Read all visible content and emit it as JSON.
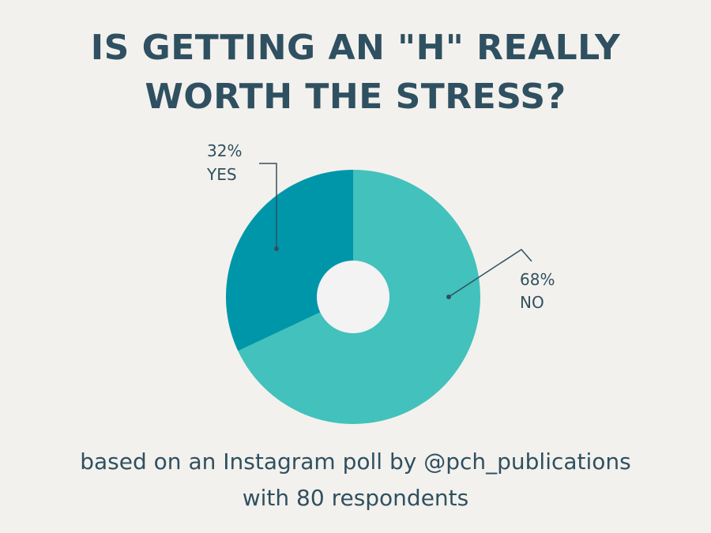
{
  "title": {
    "line1": "IS GETTING AN \"H\" REALLY",
    "line2": "WORTH THE STRESS?"
  },
  "caption": {
    "line1": "based on an Instagram poll by @pch_publications",
    "line2": "with 80 respondents"
  },
  "chart_data": {
    "type": "pie",
    "title": "IS GETTING AN \"H\" REALLY WORTH THE STRESS?",
    "slices": [
      {
        "label": "YES",
        "percent_label": "32%",
        "value": 32,
        "color": "#0096aa"
      },
      {
        "label": "NO",
        "percent_label": "68%",
        "value": 68,
        "color": "#43c1bc"
      }
    ],
    "donut_hole_color": "#f3f3f3",
    "legend": "none"
  }
}
